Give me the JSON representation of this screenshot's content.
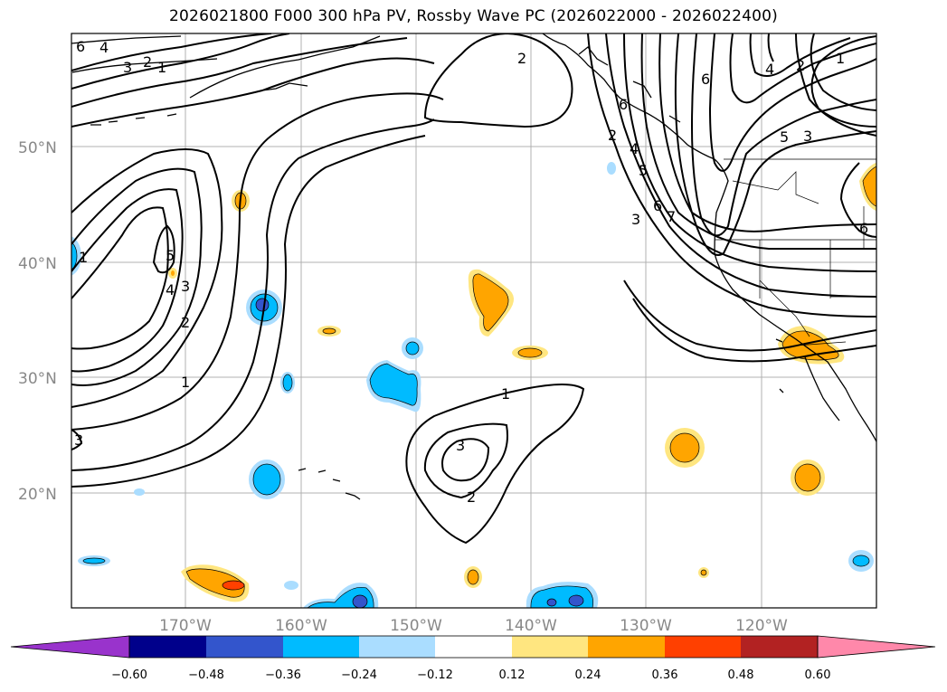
{
  "title": "2026021800 F000 300 hPa PV, Rossby Wave PC (2026022000 - 2026022400)",
  "map": {
    "lat_ticks": [
      "50°N",
      "40°N",
      "30°N",
      "20°N"
    ],
    "lon_ticks": [
      "170°W",
      "160°W",
      "150°W",
      "140°W",
      "130°W",
      "120°W"
    ],
    "contour_labels": [
      "6",
      "4",
      "3",
      "2",
      "1",
      "2",
      "1",
      "4",
      "3",
      "5",
      "2",
      "1",
      "3",
      "1",
      "3",
      "2",
      "2",
      "4",
      "5",
      "6",
      "7",
      "3",
      "6",
      "2",
      "4",
      "1",
      "5",
      "6",
      "3",
      "6"
    ]
  },
  "colorbar": {
    "colors": [
      "#9933cc",
      "#00008b",
      "#3355cc",
      "#00bbff",
      "#aaddff",
      "#ffffff",
      "#ffe680",
      "#ffa500",
      "#ff4000",
      "#b22222",
      "#ff88aa"
    ],
    "ticks": [
      "−0.60",
      "−0.48",
      "−0.36",
      "−0.24",
      "−0.12",
      "0.12",
      "0.24",
      "0.36",
      "0.48",
      "0.60"
    ]
  }
}
